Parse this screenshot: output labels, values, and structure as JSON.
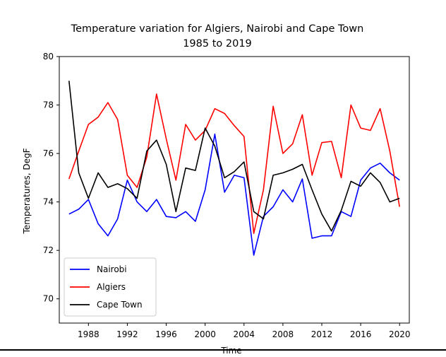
{
  "chart_data": {
    "type": "line",
    "title": "Temperature variation for Algiers, Nairobi and Cape Town",
    "subtitle": "1985 to 2019",
    "xlabel": "Time",
    "ylabel": "Temperatures, DegF",
    "xlim": [
      1985,
      2021
    ],
    "ylim": [
      69,
      80
    ],
    "xticks": [
      1988,
      1992,
      1996,
      2000,
      2004,
      2008,
      2012,
      2016,
      2020
    ],
    "yticks": [
      70,
      72,
      74,
      76,
      78,
      80
    ],
    "legend_position": "lower-left",
    "grid": false,
    "x": [
      1986,
      1987,
      1988,
      1989,
      1990,
      1991,
      1992,
      1993,
      1994,
      1995,
      1996,
      1997,
      1998,
      1999,
      2000,
      2001,
      2002,
      2003,
      2004,
      2005,
      2006,
      2007,
      2008,
      2009,
      2010,
      2011,
      2012,
      2013,
      2014,
      2015,
      2016,
      2017,
      2018,
      2019,
      2020
    ],
    "series": [
      {
        "name": "Nairobi",
        "color": "#0000ff",
        "values": [
          73.5,
          73.7,
          74.1,
          73.1,
          72.6,
          73.3,
          74.9,
          74.0,
          73.6,
          74.1,
          73.4,
          73.35,
          73.6,
          73.2,
          74.5,
          76.8,
          74.4,
          75.1,
          75.0,
          71.8,
          73.4,
          73.8,
          74.5,
          74.0,
          74.95,
          72.5,
          72.6,
          72.6,
          73.6,
          73.4,
          74.9,
          75.4,
          75.6,
          75.2,
          74.9
        ]
      },
      {
        "name": "Algiers",
        "color": "#ff0000",
        "values": [
          74.95,
          76.1,
          77.2,
          77.5,
          78.1,
          77.4,
          75.1,
          74.6,
          75.85,
          78.45,
          76.6,
          74.9,
          77.2,
          76.55,
          76.95,
          77.85,
          77.65,
          77.15,
          76.7,
          72.7,
          74.5,
          77.95,
          76.0,
          76.4,
          77.6,
          75.1,
          76.45,
          76.5,
          75.0,
          78.0,
          77.05,
          76.95,
          77.85,
          76.1,
          73.8
        ]
      },
      {
        "name": "Cape Town",
        "color": "#000000",
        "values": [
          79.0,
          75.2,
          74.15,
          75.2,
          74.6,
          74.75,
          74.55,
          74.15,
          76.1,
          76.55,
          75.55,
          73.6,
          75.4,
          75.3,
          77.05,
          76.3,
          75.0,
          75.25,
          75.65,
          73.6,
          73.3,
          75.1,
          75.2,
          75.35,
          75.55,
          74.5,
          73.5,
          72.8,
          73.65,
          74.85,
          74.65,
          75.2,
          74.8,
          74.0,
          74.15
        ]
      }
    ]
  }
}
